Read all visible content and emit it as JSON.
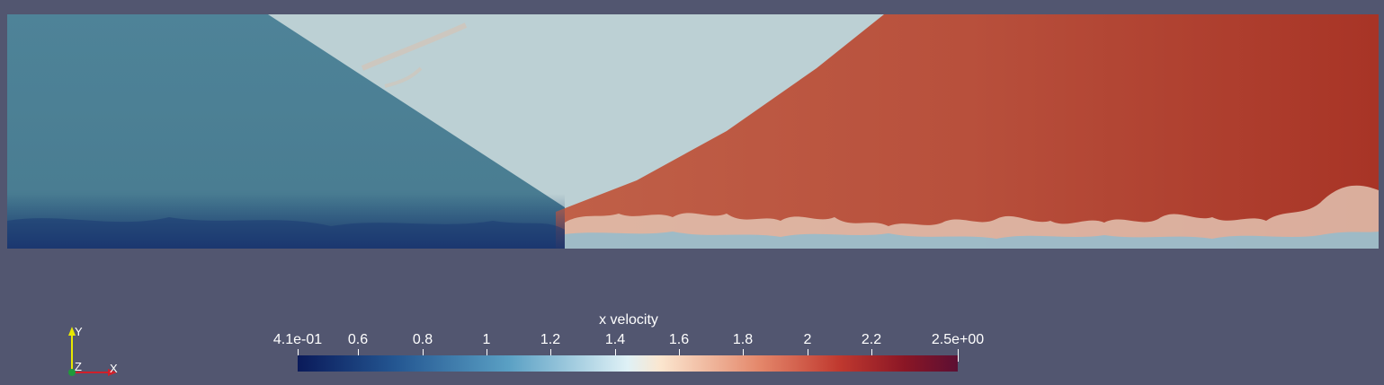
{
  "legend": {
    "title": "x velocity",
    "ticks": [
      {
        "label": "4.1e-01",
        "value": 0.41
      },
      {
        "label": "0.6",
        "value": 0.6
      },
      {
        "label": "0.8",
        "value": 0.8
      },
      {
        "label": "1",
        "value": 1.0
      },
      {
        "label": "1.2",
        "value": 1.2
      },
      {
        "label": "1.4",
        "value": 1.4
      },
      {
        "label": "1.6",
        "value": 1.6
      },
      {
        "label": "1.8",
        "value": 1.8
      },
      {
        "label": "2",
        "value": 2.0
      },
      {
        "label": "2.2",
        "value": 2.2
      },
      {
        "label": "2.5e+00",
        "value": 2.5
      }
    ],
    "range": [
      0.41,
      2.5
    ],
    "colormap": [
      "#0a1a5a",
      "#245792",
      "#5aa0c4",
      "#dff1f6",
      "#fbe6cf",
      "#e4876a",
      "#c0392f",
      "#8a1625",
      "#5c0f33"
    ]
  },
  "axes": {
    "y_label": "Y",
    "z_label": "Z",
    "x_label": "X",
    "y_color": "#e8e800",
    "x_color": "#d0202a",
    "z_color": "#1f9a3a"
  },
  "colors": {
    "background": "#525670",
    "field_low": "#4a7f94",
    "field_mid": "#b9cdd2",
    "field_high": "#b8503c"
  }
}
